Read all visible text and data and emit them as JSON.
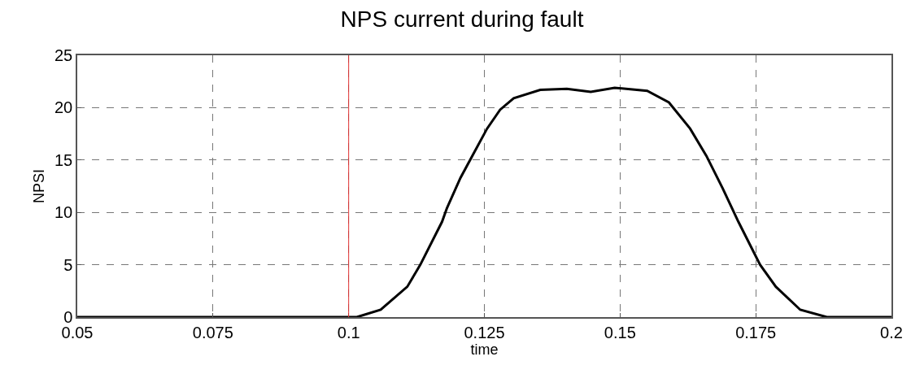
{
  "chart_data": {
    "type": "line",
    "title": "NPS current during fault",
    "xlabel": "time",
    "ylabel": "NPSI",
    "x": [
      0.05,
      0.1,
      0.1015,
      0.1059,
      0.1108,
      0.1132,
      0.1172,
      0.1181,
      0.1206,
      0.123,
      0.1255,
      0.1279,
      0.1304,
      0.1353,
      0.1402,
      0.1446,
      0.149,
      0.155,
      0.159,
      0.1629,
      0.1659,
      0.1689,
      0.1718,
      0.1758,
      0.1787,
      0.1832,
      0.1881,
      0.2
    ],
    "series": [
      {
        "color": "#000000",
        "values": [
          0,
          0,
          0,
          0.7,
          2.9,
          5,
          9.1,
          10.4,
          13.3,
          15.6,
          18,
          19.8,
          20.9,
          21.7,
          21.8,
          21.5,
          21.9,
          21.6,
          20.5,
          18,
          15.4,
          12.3,
          9.1,
          5,
          2.9,
          0.7,
          0,
          0
        ]
      }
    ],
    "xlim": [
      0.05,
      0.2
    ],
    "xticks": [
      0.05,
      0.075,
      0.1,
      0.125,
      0.15,
      0.175,
      0.2
    ],
    "ylim": [
      0,
      25
    ],
    "yticks": [
      0,
      5,
      10,
      15,
      20,
      25
    ],
    "grid": true,
    "marker": "none",
    "line_style": "solid",
    "ref_lines": [
      {
        "axis": "x",
        "value": 0.1,
        "color": "#e03030",
        "line_style": "solid"
      }
    ]
  }
}
